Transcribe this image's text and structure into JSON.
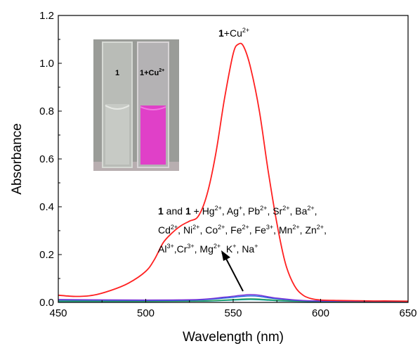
{
  "chart_data": {
    "type": "line",
    "xlabel": "Wavelength (nm)",
    "ylabel": "Absorbance",
    "xlim": [
      450,
      650
    ],
    "ylim": [
      0.0,
      1.2
    ],
    "x_ticks": [
      "450",
      "500",
      "550",
      "600",
      "650"
    ],
    "y_ticks": [
      "0.0",
      "0.2",
      "0.4",
      "0.6",
      "0.8",
      "1.0",
      "1.2"
    ],
    "grid": false,
    "series": [
      {
        "name": "1+Cu2+",
        "color": "#ff2020",
        "x": [
          450,
          460,
          470,
          480,
          490,
          500,
          505,
          510,
          515,
          520,
          525,
          530,
          535,
          540,
          545,
          550,
          553,
          556,
          560,
          565,
          570,
          575,
          580,
          585,
          590,
          595,
          600,
          610,
          620,
          630,
          640,
          650
        ],
        "y": [
          0.03,
          0.025,
          0.03,
          0.05,
          0.08,
          0.13,
          0.18,
          0.25,
          0.29,
          0.32,
          0.34,
          0.36,
          0.45,
          0.62,
          0.85,
          1.04,
          1.08,
          1.07,
          0.98,
          0.8,
          0.55,
          0.33,
          0.16,
          0.07,
          0.03,
          0.015,
          0.01,
          0.008,
          0.007,
          0.006,
          0.006,
          0.005
        ]
      },
      {
        "name": "1 and other metal ions",
        "color": "#7a33d6",
        "x": [
          450,
          500,
          530,
          545,
          555,
          560,
          565,
          575,
          590,
          610,
          650
        ],
        "y": [
          0.012,
          0.01,
          0.012,
          0.022,
          0.03,
          0.033,
          0.03,
          0.018,
          0.008,
          0.006,
          0.005
        ]
      },
      {
        "name": "1 and other metal ions",
        "color": "#2060e0",
        "x": [
          450,
          500,
          530,
          545,
          555,
          560,
          565,
          575,
          590,
          610,
          650
        ],
        "y": [
          0.01,
          0.008,
          0.01,
          0.018,
          0.025,
          0.027,
          0.025,
          0.015,
          0.007,
          0.005,
          0.004
        ]
      },
      {
        "name": "1 and other metal ions",
        "color": "#30a060",
        "x": [
          450,
          500,
          530,
          545,
          555,
          560,
          565,
          575,
          590,
          610,
          650
        ],
        "y": [
          0.006,
          0.005,
          0.006,
          0.01,
          0.014,
          0.015,
          0.014,
          0.009,
          0.005,
          0.004,
          0.003
        ]
      },
      {
        "name": "1 and other metal ions",
        "color": "#00a0a0",
        "x": [
          450,
          500,
          530,
          545,
          555,
          560,
          565,
          575,
          590,
          610,
          650
        ],
        "y": [
          0.004,
          0.004,
          0.005,
          0.008,
          0.011,
          0.012,
          0.011,
          0.007,
          0.004,
          0.003,
          0.003
        ]
      }
    ],
    "annotations": {
      "peak_label": {
        "bold": "1",
        "text": "+Cu",
        "sup": "2+"
      },
      "ions_label": {
        "line1": {
          "b1": "1",
          "t1": " and ",
          "b2": "1",
          "t2": " + Hg",
          "s1": "2+",
          "t3": ", Ag",
          "s2": "+",
          "t4": ", Pb",
          "s3": "2+",
          "t5": ", Sr",
          "s4": "2+",
          "t6": ", Ba",
          "s5": "2+",
          "t7": ","
        },
        "line2": {
          "t1": "Cd",
          "s1": "2+",
          "t2": ", Ni",
          "s2": "2+",
          "t3": ", Co",
          "s3": "2+",
          "t4": ", Fe",
          "s4": "2+",
          "t5": ", Fe",
          "s5": "3+",
          "t6": ", Mn",
          "s6": "2+",
          "t7": ", Zn",
          "s7": "2+",
          "t8": ","
        },
        "line3": {
          "t1": "Al",
          "s1": "3+",
          "t2": ",Cr",
          "s2": "3+",
          "t3": ", Mg",
          "s3": "2+",
          "t4": ", K",
          "s4": "+",
          "t5": ", Na",
          "s5": "+"
        }
      },
      "inset_photo": {
        "left_label": "1",
        "right_label": {
          "text": "1+Cu",
          "sup": "2+"
        },
        "solution_color": "#e040c8"
      }
    }
  }
}
